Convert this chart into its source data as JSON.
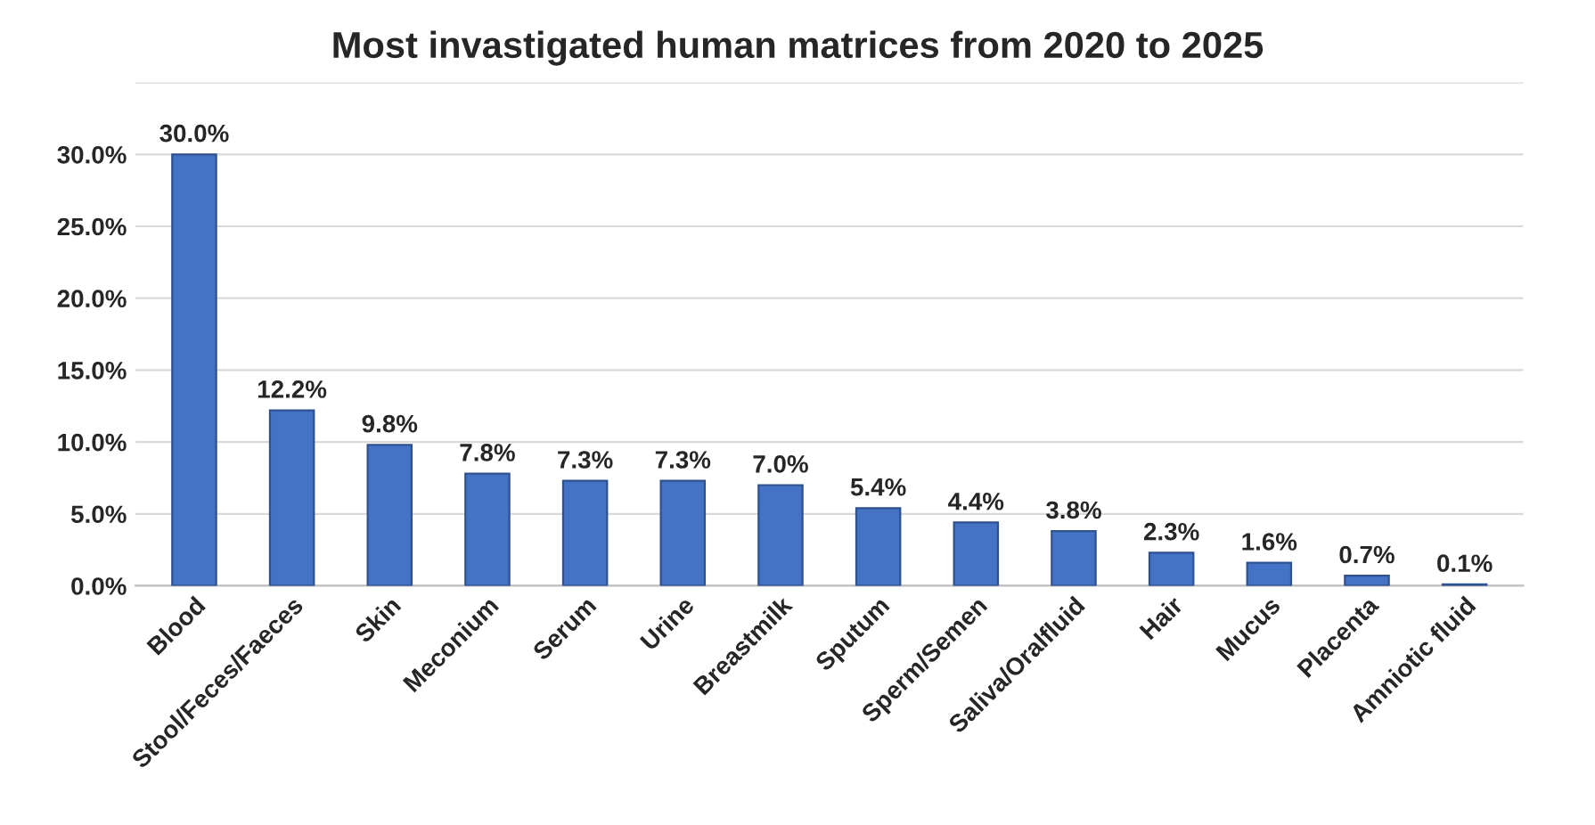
{
  "chart_data": {
    "type": "bar",
    "title": "Most invastigated human matrices from 2020 to 2025",
    "categories": [
      "Blood",
      "Stool/Feces/Faeces",
      "Skin",
      "Meconium",
      "Serum",
      "Urine",
      "Breastmilk",
      "Sputum",
      "Sperm/Semen",
      "Saliva/Oralfluid",
      "Hair",
      "Mucus",
      "Placenta",
      "Amniotic fluid"
    ],
    "values": [
      30.0,
      12.2,
      9.8,
      7.8,
      7.3,
      7.3,
      7.0,
      5.4,
      4.4,
      3.8,
      2.3,
      1.6,
      0.7,
      0.1
    ],
    "value_labels": [
      "30.0%",
      "12.2%",
      "9.8%",
      "7.8%",
      "7.3%",
      "7.3%",
      "7.0%",
      "5.4%",
      "4.4%",
      "3.8%",
      "2.3%",
      "1.6%",
      "0.7%",
      "0.1%"
    ],
    "color": "#4472c4",
    "ylim": [
      0,
      35
    ],
    "yticks": [
      {
        "value": 0,
        "label": "0.0%"
      },
      {
        "value": 5,
        "label": "5.0%"
      },
      {
        "value": 10,
        "label": "10.0%"
      },
      {
        "value": 15,
        "label": "15.0%"
      },
      {
        "value": 20,
        "label": "20.0%"
      },
      {
        "value": 25,
        "label": "25.0%"
      },
      {
        "value": 30,
        "label": "30.0%"
      },
      {
        "value": 35,
        "label": null
      }
    ],
    "grid": "y",
    "legend": false
  }
}
